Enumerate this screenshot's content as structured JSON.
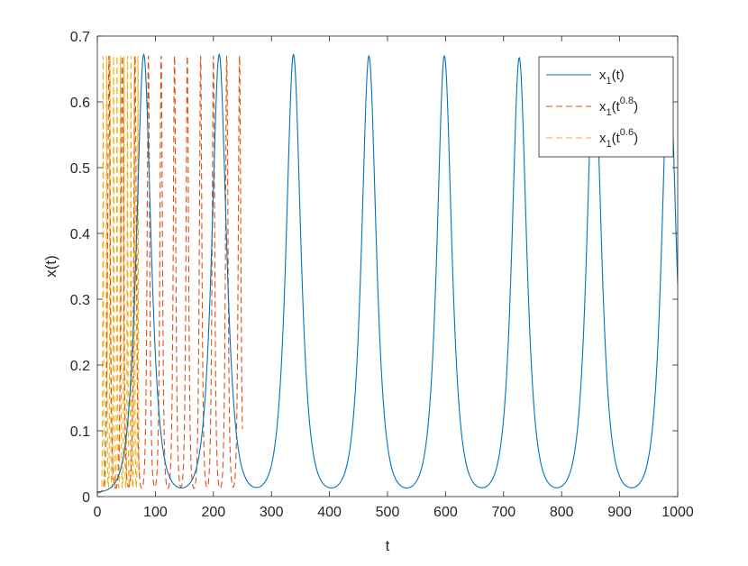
{
  "chart_data": {
    "type": "line",
    "xlabel": "t",
    "ylabel": "x(t)",
    "xlim": [
      0,
      1000
    ],
    "ylim": [
      0,
      0.7
    ],
    "xticks": [
      0,
      100,
      200,
      300,
      400,
      500,
      600,
      700,
      800,
      900,
      1000
    ],
    "yticks": [
      0,
      0.1,
      0.2,
      0.3,
      0.4,
      0.5,
      0.6,
      0.7
    ],
    "xtick_labels": [
      "0",
      "100",
      "200",
      "300",
      "400",
      "500",
      "600",
      "700",
      "800",
      "900",
      "1000"
    ],
    "ytick_labels": [
      "0",
      "0.1",
      "0.2",
      "0.3",
      "0.4",
      "0.5",
      "0.6",
      "0.7"
    ],
    "grid": false,
    "legend_position": "top-right",
    "legend": [
      {
        "base": "x",
        "sub": "1",
        "arg": "(t",
        "sup": "",
        "close": ")"
      },
      {
        "base": "x",
        "sub": "1",
        "arg": "(t",
        "sup": "0.8",
        "close": ")"
      },
      {
        "base": "x",
        "sub": "1",
        "arg": "(t",
        "sup": "0.6",
        "close": ")"
      }
    ],
    "series": [
      {
        "style": "solid",
        "color": "#0072BD",
        "peaks_t": [
          80,
          210,
          338,
          468,
          598,
          727,
          856,
          985
        ],
        "peak_values": [
          0.672,
          0.672,
          0.672,
          0.67,
          0.67,
          0.667,
          0.667,
          0.667
        ],
        "trough_value": 0.006,
        "x_end": 1000,
        "y_end": 0.35
      },
      {
        "style": "dashed",
        "color": "#D95319",
        "peaks_t": [
          20,
          43,
          65,
          88,
          110,
          133,
          155,
          178,
          200,
          223,
          245
        ],
        "peak_values": [
          0.67,
          0.67,
          0.67,
          0.67,
          0.67,
          0.67,
          0.67,
          0.67,
          0.67,
          0.67,
          0.67
        ],
        "trough_value": 0.006,
        "x_end": 250
      },
      {
        "style": "dashed",
        "color": "#EDB120",
        "peaks_t": [
          10,
          16,
          22,
          28,
          34,
          40,
          46,
          52,
          58,
          64,
          70
        ],
        "peak_values": [
          0.67,
          0.67,
          0.67,
          0.67,
          0.67,
          0.67,
          0.67,
          0.67,
          0.67,
          0.67,
          0.67
        ],
        "trough_value": 0.006,
        "x_end": 72
      }
    ]
  }
}
